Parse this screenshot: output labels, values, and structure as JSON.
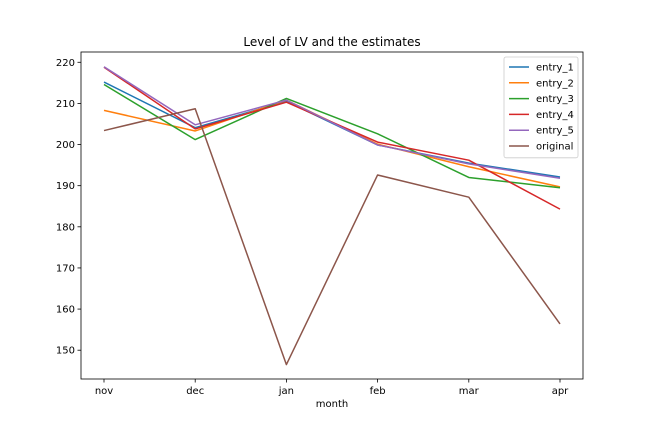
{
  "chart_data": {
    "type": "line",
    "title": "Level of LV and the estimates",
    "xlabel": "month",
    "ylabel": "",
    "categories": [
      "nov",
      "dec",
      "jan",
      "feb",
      "mar",
      "apr"
    ],
    "ylim": [
      143,
      222.5
    ],
    "yticks": [
      150,
      160,
      170,
      180,
      190,
      200,
      210,
      220
    ],
    "grid": false,
    "legend_position": "top-right",
    "series": [
      {
        "name": "entry_1",
        "color": "#1f77b4",
        "values": [
          215.2,
          204.1,
          210.5,
          199.9,
          195.5,
          192.1
        ]
      },
      {
        "name": "entry_2",
        "color": "#ff7f0e",
        "values": [
          208.3,
          203.3,
          210.8,
          200.1,
          194.6,
          189.7
        ]
      },
      {
        "name": "entry_3",
        "color": "#2ca02c",
        "values": [
          214.6,
          201.2,
          211.2,
          202.6,
          192.0,
          189.5
        ]
      },
      {
        "name": "entry_4",
        "color": "#d62728",
        "values": [
          218.8,
          203.8,
          210.3,
          200.6,
          196.2,
          184.3
        ]
      },
      {
        "name": "entry_5",
        "color": "#9467bd",
        "values": [
          218.9,
          204.8,
          210.8,
          199.9,
          195.3,
          191.8
        ]
      },
      {
        "name": "original",
        "color": "#8c564b",
        "values": [
          203.4,
          208.7,
          146.5,
          192.6,
          187.2,
          156.4
        ]
      }
    ]
  }
}
